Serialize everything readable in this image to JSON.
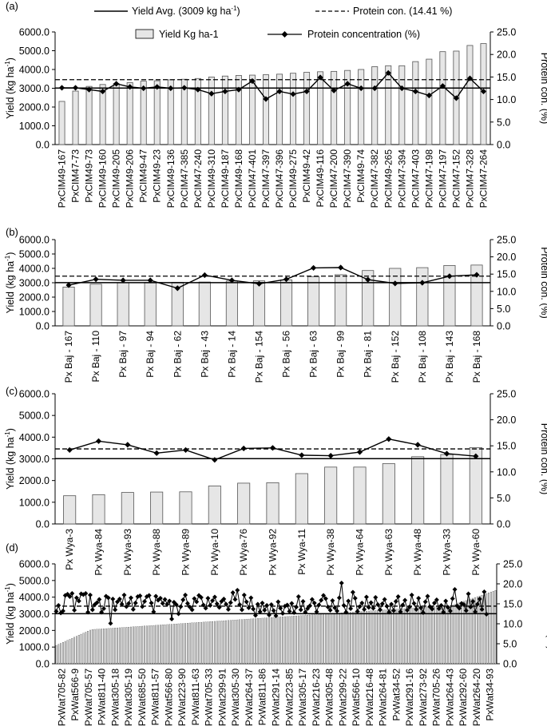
{
  "legend": {
    "avg_label": "Yield Avg. (3009 kg ha",
    "avg_sup": "-1",
    "avg_close": ")",
    "protein_label": "Protein con. (14.41 %)",
    "bar_label": "Yield Kg ha-1",
    "line_label": "Protein concentration (%)"
  },
  "axis_text": {
    "yield_prefix": "Yield (kg ha",
    "yield_sup": "-1",
    "yield_close": ")",
    "protein": "Protein con. (%)"
  },
  "reference": {
    "yield_avg": 3009,
    "protein_avg": 14.41
  },
  "chart_data": [
    {
      "panel": "(a)",
      "type": "bar",
      "categories": [
        "PxCIM49-167",
        "PxCIM47-73",
        "PxCIM49-73",
        "PxCIM49-160",
        "PxCIM49-205",
        "PxCIM49-206",
        "PxCIM49-47",
        "PxCIM49-23",
        "PxCIM49-136",
        "PxCIM47-385",
        "PxCIM47-240",
        "PxCIM49-310",
        "PxCIM49-187",
        "PxCIM49-168",
        "PxCIM47-401",
        "PxCIM47-397",
        "PxCIM47-396",
        "PxCIM49-275",
        "PxCIM49-42",
        "PxCIM49-116",
        "PxCIM47-200",
        "PxCIM47-390",
        "PxCIM49-74",
        "PxCIM47-382",
        "PxCIM49-265",
        "PxCIM47-394",
        "PxCIM47-403",
        "PxCIM47-198",
        "PxCIM47-197",
        "PxCIM47-152",
        "PxCIM47-328",
        "PxCIM47-264"
      ],
      "series": [
        {
          "name": "Yield Kg ha-1",
          "axis": "left",
          "values": [
            2300,
            2850,
            3100,
            3200,
            3250,
            3300,
            3380,
            3400,
            3450,
            3480,
            3520,
            3600,
            3650,
            3680,
            3700,
            3720,
            3750,
            3800,
            3850,
            3880,
            3900,
            3950,
            4000,
            4150,
            4200,
            4200,
            4420,
            4550,
            4950,
            4980,
            5280,
            5380
          ]
        },
        {
          "name": "Protein concentration (%)",
          "axis": "right",
          "values": [
            12.6,
            12.6,
            12.2,
            11.8,
            13.5,
            12.8,
            12.5,
            12.8,
            12.5,
            12.6,
            12.2,
            11.3,
            11.8,
            12.2,
            14.1,
            10.1,
            11.8,
            11.2,
            11.8,
            14.9,
            12.0,
            13.5,
            12.5,
            12.5,
            15.9,
            12.5,
            11.8,
            10.9,
            13.0,
            10.3,
            14.7,
            11.8
          ]
        }
      ],
      "ylim": [
        0,
        6000
      ],
      "y2lim": [
        0,
        25
      ]
    },
    {
      "panel": "(b)",
      "type": "bar",
      "categories": [
        "Px Baj - 167",
        "Px Baj - 110",
        "Px Baj - 97",
        "Px Baj - 94",
        "Px Baj - 62",
        "Px Baj - 43",
        "Px Baj - 14",
        "Px Baj - 154",
        "Px Baj - 56",
        "Px Baj - 63",
        "Px Baj - 99",
        "Px Baj - 81",
        "Px Baj - 152",
        "Px Baj - 108",
        "Px Baj - 143",
        "Px Baj - 168"
      ],
      "series": [
        {
          "name": "Yield Kg ha-1",
          "axis": "left",
          "values": [
            2700,
            2900,
            3000,
            3020,
            3030,
            3050,
            3120,
            3130,
            3200,
            3420,
            3560,
            3850,
            4000,
            4050,
            4200,
            4230
          ]
        },
        {
          "name": "Protein concentration (%)",
          "axis": "right",
          "values": [
            11.8,
            13.5,
            13.2,
            13.2,
            10.9,
            14.7,
            13.2,
            12.2,
            13.5,
            16.8,
            16.9,
            13.4,
            12.3,
            12.5,
            14.4,
            14.8
          ]
        }
      ],
      "ylim": [
        0,
        6000
      ],
      "y2lim": [
        0,
        25
      ]
    },
    {
      "panel": "(c)",
      "type": "bar",
      "categories": [
        "Px Wya-3",
        "Px Wya-84",
        "Px Wya-93",
        "Px Wya-88",
        "Px Wya-89",
        "Px Wya-10",
        "Px Wya-76",
        "Px Wya-92",
        "Px Wya-11",
        "Px Wya-38",
        "Px Wya-64",
        "Px Wya-63",
        "Px Wya-48",
        "Px Wya-33",
        "Px Wya-60"
      ],
      "series": [
        {
          "name": "Yield Kg ha-1",
          "axis": "left",
          "values": [
            1300,
            1350,
            1450,
            1470,
            1480,
            1750,
            1880,
            1900,
            2320,
            2620,
            2620,
            2780,
            3100,
            3200,
            3520
          ]
        },
        {
          "name": "Protein concentration (%)",
          "axis": "right",
          "values": [
            14.2,
            15.9,
            15.2,
            13.6,
            14.2,
            12.3,
            14.5,
            14.6,
            13.2,
            13.1,
            13.8,
            16.3,
            15.2,
            13.5,
            13.0
          ]
        }
      ],
      "ylim": [
        0,
        6000
      ],
      "y2lim": [
        0,
        25
      ]
    },
    {
      "panel": "(d)",
      "type": "bar",
      "tick_labels": [
        "PxWat705-82",
        "PxWat566-9",
        "PxWat705-57",
        "PxWat811-40",
        "PxWat305-18",
        "PxWat305-19",
        "PxWat685-50",
        "PxWat811-57",
        "PxWat566-80",
        "PxWat223-90",
        "PxWat811-63",
        "PxWat705-33",
        "PxWat299-91",
        "PxWat305-30",
        "PxWat264-37",
        "PxWat811-86",
        "PxWat291-14",
        "PxWat223-85",
        "PxWat305-17",
        "PxWat216-23",
        "PxWat305-48",
        "PxWat299-22",
        "PxWat566-10",
        "PxWat216-48",
        "PxWat264-81",
        "PxWat34-52",
        "PxWat291-16",
        "PxWat273-92",
        "PxWat705-26",
        "PxWat264-43",
        "PxWat292-60",
        "PxWat264-20",
        "PxWat34-93"
      ],
      "n_bars": 195,
      "yield_start": 1100,
      "yield_end": 4400,
      "protein_values": [
        13.1,
        14.6,
        12.7,
        13.2,
        17.1,
        17.4,
        16.8,
        17.6,
        13.4,
        16.5,
        15.7,
        17.5,
        17.3,
        17.6,
        12.9,
        17.2,
        13.5,
        14.8,
        15.3,
        16.1,
        12.9,
        13.8,
        16.9,
        16.5,
        10.1,
        16.2,
        13.5,
        15.5,
        16.2,
        14.9,
        17.2,
        14.3,
        15.1,
        16.5,
        13.6,
        15.2,
        16.8,
        17.0,
        14.3,
        15.6,
        16.8,
        17.1,
        15.2,
        13.0,
        16.9,
        15.9,
        16.4,
        15.1,
        16.1,
        14.9,
        15.7,
        11.2,
        15.4,
        14.8,
        12.5,
        14.3,
        16.0,
        17.2,
        15.1,
        14.2,
        13.5,
        16.3,
        15.5,
        17.1,
        16.6,
        14.7,
        13.9,
        16.4,
        14.6,
        15.8,
        16.7,
        15.0,
        14.1,
        15.6,
        16.2,
        14.9,
        13.6,
        15.3,
        17.8,
        16.1,
        18.4,
        14.8,
        13.5,
        17.2,
        15.5,
        14.0,
        16.5,
        13.7,
        12.1,
        14.9,
        13.0,
        15.2,
        13.4,
        14.6,
        12.2,
        14.8,
        13.3,
        12.0,
        15.5,
        13.9,
        12.6,
        14.4,
        14.7,
        13.1,
        15.1,
        12.8,
        14.2,
        16.8,
        13.5,
        15.6,
        12.9,
        13.8,
        14.5,
        16.1,
        15.2,
        13.0,
        14.7,
        15.9,
        17.1,
        16.3,
        14.2,
        13.4,
        15.8,
        14.0,
        13.2,
        16.5,
        20.2,
        14.6,
        12.9,
        15.7,
        13.8,
        17.9,
        16.4,
        13.1,
        14.3,
        15.2,
        13.6,
        16.7,
        14.1,
        15.3,
        13.9,
        16.6,
        14.8,
        13.5,
        15.0,
        16.1,
        14.4,
        12.9,
        14.9,
        13.3,
        15.6,
        16.8,
        13.0,
        14.7,
        15.9,
        13.4,
        14.2,
        17.2,
        15.1,
        13.6,
        16.4,
        14.0,
        12.8,
        15.5,
        16.9,
        14.3,
        13.7,
        15.2,
        16.0,
        13.8,
        14.6,
        12.9,
        15.7,
        14.1,
        13.2,
        16.3,
        18.6,
        14.5,
        13.9,
        15.1,
        14.8,
        13.3,
        17.5,
        14.2,
        15.6,
        13.0,
        14.9,
        16.2,
        13.6,
        18.0,
        12.4
      ]
    }
  ],
  "panels": [
    {
      "label": "(a)",
      "ticks": [
        "0.0",
        "1000.0",
        "2000.0",
        "3000.0",
        "4000.0",
        "5000.0",
        "6000.0"
      ],
      "rticks": [
        "0.0",
        "5.0",
        "10.0",
        "15.0",
        "20.0",
        "25.0"
      ]
    },
    {
      "label": "(b)",
      "ticks": [
        "0.0",
        "1000.0",
        "2000.0",
        "3000.0",
        "4000.0",
        "5000.0",
        "6000.0"
      ],
      "rticks": [
        "0.0",
        "5.0",
        "10.0",
        "15.0",
        "20.0",
        "25.0"
      ]
    },
    {
      "label": "(c)",
      "ticks": [
        "0.0",
        "1000.0",
        "2000.0",
        "3000.0",
        "4000.0",
        "5000.0",
        "6000.0"
      ],
      "rticks": [
        "0.0",
        "5.0",
        "10.0",
        "15.0",
        "20.0",
        "25.0"
      ]
    },
    {
      "label": "(d)",
      "ticks": [
        "0.0",
        "1000.0",
        "2000.0",
        "3000.0",
        "4000.0",
        "5000.0",
        "6000.0"
      ],
      "rticks": [
        "0.0",
        "5.0",
        "10.0",
        "15.0",
        "20.0",
        "25.0"
      ]
    }
  ]
}
